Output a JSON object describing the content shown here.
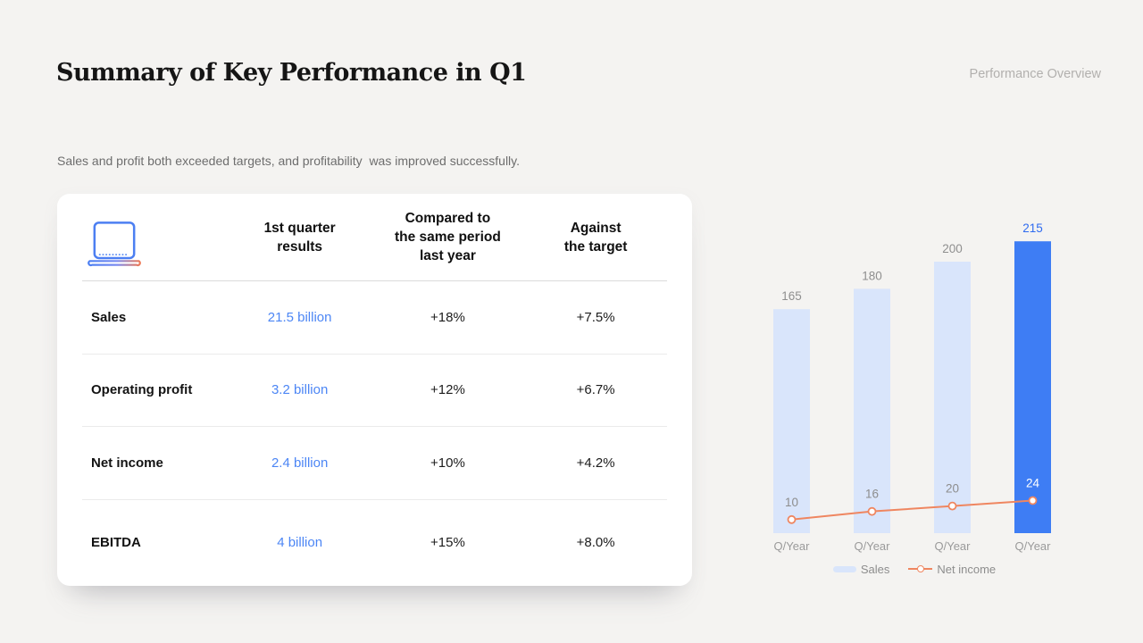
{
  "page": {
    "title": "Summary of Key Performance in Q1",
    "header_right": "Performance Overview",
    "subtitle": "Sales and profit both exceeded targets, and profitability  was improved successfully."
  },
  "table": {
    "icon": "laptop-bar-chart-icon",
    "columns": {
      "results": "1st quarter\nresults",
      "yoy": "Compared to\nthe same period\nlast year",
      "target": "Against\nthe target"
    },
    "rows": [
      {
        "label": "Sales",
        "result": "21.5 billion",
        "yoy": "+18%",
        "target": "+7.5%"
      },
      {
        "label": "Operating profit",
        "result": "3.2 billion",
        "yoy": "+12%",
        "target": "+6.7%"
      },
      {
        "label": "Net income",
        "result": "2.4 billion",
        "yoy": "+10%",
        "target": "+4.2%"
      },
      {
        "label": "EBITDA",
        "result": "4 billion",
        "yoy": "+15%",
        "target": "+8.0%"
      }
    ]
  },
  "chart_data": {
    "type": "bar",
    "categories": [
      "Q/Year",
      "Q/Year",
      "Q/Year",
      "Q/Year"
    ],
    "series": [
      {
        "name": "Sales",
        "type": "bar",
        "values": [
          165,
          180,
          200,
          215
        ]
      },
      {
        "name": "Net income",
        "type": "line",
        "values": [
          10,
          16,
          20,
          24
        ]
      }
    ],
    "highlight_index": 3,
    "axis_visible": false,
    "grid": false,
    "legend_position": "bottom",
    "colors": {
      "bar": "#D9E5FB",
      "bar_highlight": "#3E7DF4",
      "bar_label": "#8F8F8F",
      "bar_label_highlight": "#2F6BF0",
      "line": "#EF8660",
      "net_label": "#8D8D8D",
      "net_label_highlight": "#FFFFFF",
      "x_label": "#9A9A9A"
    }
  }
}
